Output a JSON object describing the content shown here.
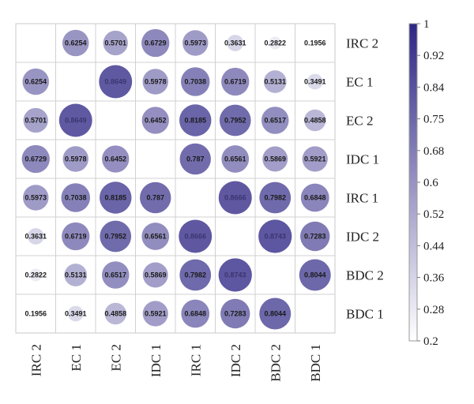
{
  "chart_data": {
    "type": "heatmap",
    "subtype": "correlation circle matrix",
    "row_labels": [
      "IRC 2",
      "EC 1",
      "EC 2",
      "IDC 1",
      "IRC 1",
      "IDC 2",
      "BDC 2",
      "BDC 1"
    ],
    "col_labels": [
      "IRC 2",
      "EC 1",
      "EC 2",
      "IDC 1",
      "IRC 1",
      "IDC 2",
      "BDC 2",
      "BDC 1"
    ],
    "values": [
      [
        null,
        0.6254,
        0.5701,
        0.6729,
        0.5973,
        0.3631,
        0.2822,
        0.1956
      ],
      [
        0.6254,
        null,
        0.8649,
        0.5978,
        0.7038,
        0.6719,
        0.5131,
        0.3491
      ],
      [
        0.5701,
        0.8649,
        null,
        0.6452,
        0.8185,
        0.7952,
        0.6517,
        0.4858
      ],
      [
        0.6729,
        0.5978,
        0.6452,
        null,
        0.787,
        0.6561,
        0.5869,
        0.5921
      ],
      [
        0.5973,
        0.7038,
        0.8185,
        0.787,
        null,
        0.8666,
        0.7982,
        0.6848
      ],
      [
        0.3631,
        0.6719,
        0.7952,
        0.6561,
        0.8666,
        null,
        0.8743,
        0.7283
      ],
      [
        0.2822,
        0.5131,
        0.6517,
        0.5869,
        0.7982,
        0.8743,
        null,
        0.8044
      ],
      [
        0.1956,
        0.3491,
        0.4858,
        0.5921,
        0.6848,
        0.7283,
        0.8044,
        null
      ]
    ],
    "cell_labels": [
      [
        "",
        "0.6254",
        "0.5701",
        "0.6729",
        "0.5973",
        "0.3631",
        "0.2822",
        "0.1956"
      ],
      [
        "0.6254",
        "",
        "0.8649",
        "0.5978",
        "0.7038",
        "0.6719",
        "0.5131",
        "0.3491"
      ],
      [
        "0.5701",
        "0.8649",
        "",
        "0.6452",
        "0.8185",
        "0.7952",
        "0.6517",
        "0.4858"
      ],
      [
        "0.6729",
        "0.5978",
        "0.6452",
        "",
        "0.787",
        "0.6561",
        "0.5869",
        "0.5921"
      ],
      [
        "0.5973",
        "0.7038",
        "0.8185",
        "0.787",
        "",
        "0.8666",
        "0.7982",
        "0.6848"
      ],
      [
        "0.3631",
        "0.6719",
        "0.7952",
        "0.6561",
        "0.8666",
        "",
        "0.8743",
        "0.7283"
      ],
      [
        "0.2822",
        "0.5131",
        "0.6517",
        "0.5869",
        "0.7982",
        "0.8743",
        "",
        "0.8044"
      ],
      [
        "0.1956",
        "0.3491",
        "0.4858",
        "0.5921",
        "0.6848",
        "0.7283",
        "0.8044",
        ""
      ]
    ],
    "colorbar": {
      "range": [
        0.2,
        1
      ],
      "ticks": [
        "1",
        "0.92",
        "0.84",
        "0.75",
        "0.68",
        "0.6",
        "0.52",
        "0.44",
        "0.36",
        "0.28",
        "0.2"
      ],
      "color_low": "#ffffff",
      "color_high": "#2e2685",
      "placement": "right"
    },
    "grid": true
  }
}
